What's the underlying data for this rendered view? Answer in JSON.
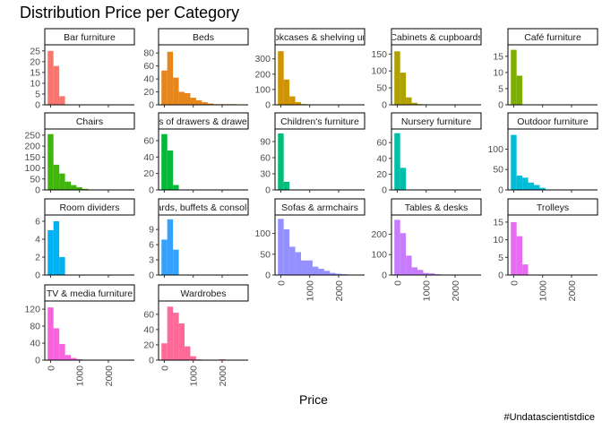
{
  "chart_data": {
    "type": "bar",
    "title": "Distribution Price per Category",
    "xlabel": "Price",
    "caption": "#Undatascientistdice",
    "bin_width": 200,
    "x_ticks": [
      0,
      1000,
      2000
    ],
    "panels": [
      {
        "name": "Bar furniture",
        "color": "#F8766D",
        "yticks": [
          0,
          5,
          10,
          15,
          20,
          25
        ],
        "ymax": 27,
        "start": -100,
        "values": [
          25,
          18,
          4
        ]
      },
      {
        "name": "Beds",
        "color": "#E7861B",
        "yticks": [
          0,
          20,
          40,
          60,
          80
        ],
        "ymax": 90,
        "start": -100,
        "values": [
          53,
          82,
          42,
          20,
          18,
          11,
          7,
          4,
          2,
          1,
          1,
          1,
          1
        ]
      },
      {
        "name": "Bookcases & shelving units",
        "color": "#CF9400",
        "yticks": [
          0,
          100,
          200,
          300
        ],
        "ymax": 380,
        "start": -100,
        "values": [
          350,
          165,
          55,
          18,
          5,
          2,
          1,
          1
        ]
      },
      {
        "name": "Cabinets & cupboards",
        "color": "#AFA100",
        "yticks": [
          0,
          50,
          100,
          150
        ],
        "ymax": 172,
        "start": -100,
        "values": [
          158,
          95,
          22,
          6,
          2,
          1
        ]
      },
      {
        "name": "Café furniture",
        "color": "#7CAE00",
        "yticks": [
          0,
          5,
          10,
          15
        ],
        "ymax": 18,
        "start": -100,
        "values": [
          17,
          9
        ]
      },
      {
        "name": "Chairs",
        "color": "#40B50B",
        "yticks": [
          0,
          50,
          100,
          150,
          200,
          250
        ],
        "ymax": 270,
        "start": -100,
        "values": [
          255,
          115,
          75,
          38,
          22,
          12,
          5,
          2,
          1
        ]
      },
      {
        "name": "Chests of drawers & drawer units",
        "color": "#00BA38",
        "yticks": [
          0,
          20,
          40,
          60
        ],
        "ymax": 72,
        "start": -100,
        "values": [
          68,
          48,
          6
        ]
      },
      {
        "name": "Children's furniture",
        "color": "#00BE7A",
        "yticks": [
          0,
          30,
          60,
          90
        ],
        "ymax": 110,
        "start": -100,
        "values": [
          105,
          15
        ]
      },
      {
        "name": "Nursery furniture",
        "color": "#00BFA8",
        "yticks": [
          0,
          20,
          40,
          60
        ],
        "ymax": 75,
        "start": -100,
        "values": [
          72,
          28
        ]
      },
      {
        "name": "Outdoor furniture",
        "color": "#00BCD8",
        "yticks": [
          0,
          50,
          100
        ],
        "ymax": 145,
        "start": -100,
        "values": [
          135,
          35,
          30,
          18,
          12,
          5
        ]
      },
      {
        "name": "Room dividers",
        "color": "#00B2F3",
        "yticks": [
          0,
          2,
          4,
          6
        ],
        "ymax": 6.5,
        "start": -100,
        "values": [
          5,
          6,
          2
        ]
      },
      {
        "name": "Sideboards, buffets & console tables",
        "color": "#35A2FF",
        "yticks": [
          0,
          3,
          6,
          9
        ],
        "ymax": 11.5,
        "start": -100,
        "values": [
          7,
          11,
          5
        ]
      },
      {
        "name": "Sofas & armchairs",
        "color": "#9590FF",
        "yticks": [
          0,
          50,
          100
        ],
        "ymax": 140,
        "start": -100,
        "values": [
          135,
          110,
          68,
          55,
          35,
          35,
          20,
          15,
          10,
          5,
          3,
          2,
          1
        ]
      },
      {
        "name": "Tables & desks",
        "color": "#C77CFF",
        "yticks": [
          0,
          100,
          200
        ],
        "ymax": 285,
        "start": -100,
        "values": [
          270,
          205,
          95,
          38,
          25,
          10,
          8,
          4,
          2,
          1
        ]
      },
      {
        "name": "Trolleys",
        "color": "#E76BF3",
        "yticks": [
          0,
          5,
          10,
          15
        ],
        "ymax": 16.5,
        "start": -100,
        "values": [
          15,
          11,
          3
        ]
      },
      {
        "name": "TV & media furniture",
        "color": "#F962DD",
        "yticks": [
          0,
          40,
          80,
          120
        ],
        "ymax": 135,
        "start": -100,
        "values": [
          124,
          75,
          38,
          12,
          5,
          2,
          1
        ]
      },
      {
        "name": "Wardrobes",
        "color": "#FF6A98",
        "yticks": [
          0,
          20,
          40,
          60
        ],
        "ymax": 75,
        "start": -100,
        "values": [
          22,
          70,
          62,
          48,
          18,
          5,
          1,
          0,
          0,
          0,
          1
        ]
      }
    ]
  }
}
